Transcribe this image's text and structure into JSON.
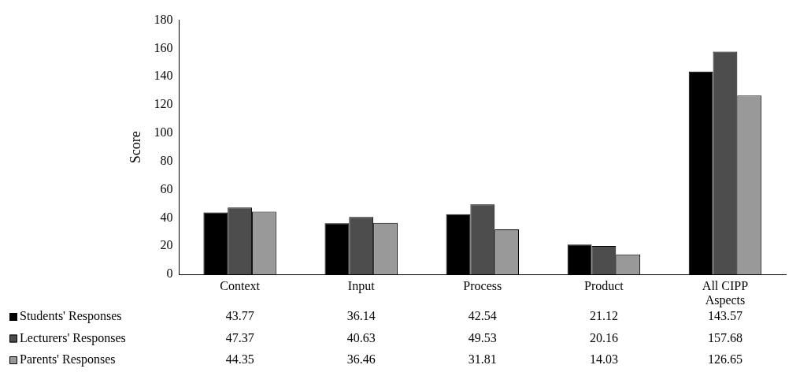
{
  "chart_data": {
    "type": "bar",
    "ylabel": "Score",
    "categories": [
      "Context",
      "Input",
      "Process",
      "Product",
      "All CIPP Aspects"
    ],
    "series": [
      {
        "name": "Students' Responses",
        "color": "#000000",
        "values": [
          43.77,
          36.14,
          42.54,
          21.12,
          143.57
        ]
      },
      {
        "name": "Lecturers' Responses",
        "color": "#4d4d4d",
        "values": [
          47.37,
          40.63,
          49.53,
          20.16,
          157.68
        ]
      },
      {
        "name": "Parents' Responses",
        "color": "#999999",
        "values": [
          44.35,
          36.46,
          31.81,
          14.03,
          126.65
        ]
      }
    ],
    "ylim": [
      0,
      180
    ],
    "yticks": [
      0,
      20,
      40,
      60,
      80,
      100,
      120,
      140,
      160,
      180
    ],
    "grid": false,
    "legend": "bottom",
    "data_labels": true
  }
}
